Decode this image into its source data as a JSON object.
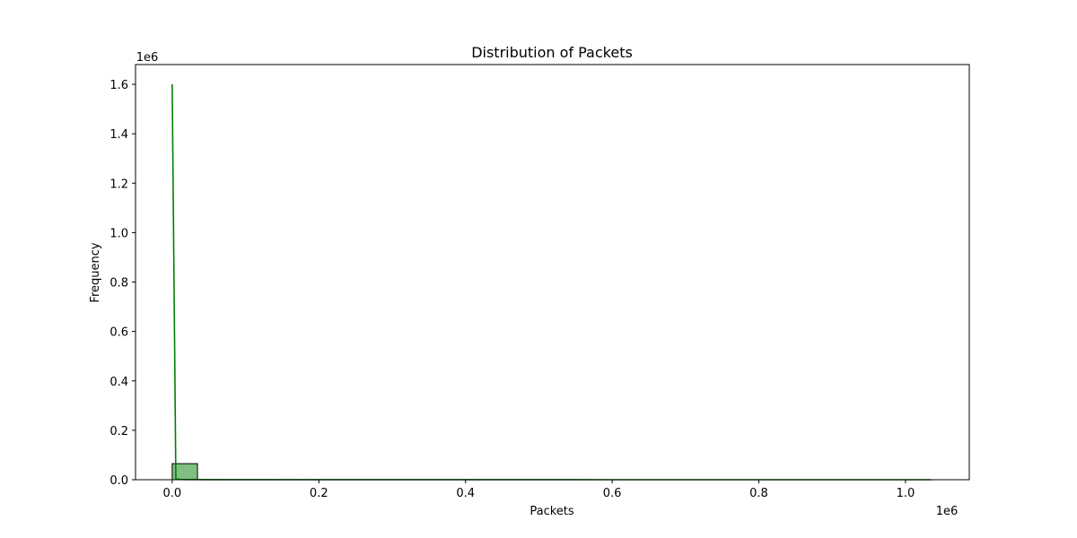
{
  "chart_data": {
    "type": "bar",
    "title": "Distribution of Packets",
    "xlabel": "Packets",
    "ylabel": "Frequency",
    "x_offset_text": "1e6",
    "y_offset_text": "1e6",
    "xlim": [
      -50000,
      1087000
    ],
    "ylim": [
      0,
      1680000
    ],
    "x_ticks": [
      0,
      200000,
      400000,
      600000,
      800000,
      1000000
    ],
    "x_tick_labels": [
      "0.0",
      "0.2",
      "0.4",
      "0.6",
      "0.8",
      "1.0"
    ],
    "y_ticks": [
      0,
      200000,
      400000,
      600000,
      800000,
      1000000,
      1200000,
      1400000,
      1600000
    ],
    "y_tick_labels": [
      "0.0",
      "0.2",
      "0.4",
      "0.6",
      "0.8",
      "1.0",
      "1.2",
      "1.4",
      "1.6"
    ],
    "bins": [
      {
        "x0": 0,
        "x1": 34500,
        "count": 65000
      },
      {
        "x0": 34500,
        "x1": 69000,
        "count": 300
      },
      {
        "x0": 69000,
        "x1": 103500,
        "count": 100
      },
      {
        "x0": 103500,
        "x1": 138000,
        "count": 50
      },
      {
        "x0": 138000,
        "x1": 172500,
        "count": 20
      },
      {
        "x0": 172500,
        "x1": 207000,
        "count": 10
      },
      {
        "x0": 207000,
        "x1": 241500,
        "count": 5
      },
      {
        "x0": 241500,
        "x1": 276000,
        "count": 2
      },
      {
        "x0": 276000,
        "x1": 310500,
        "count": 1
      },
      {
        "x0": 310500,
        "x1": 345000,
        "count": 1
      },
      {
        "x0": 345000,
        "x1": 379500,
        "count": 1
      },
      {
        "x0": 379500,
        "x1": 414000,
        "count": 1
      },
      {
        "x0": 414000,
        "x1": 448500,
        "count": 1
      },
      {
        "x0": 448500,
        "x1": 483000,
        "count": 1
      },
      {
        "x0": 483000,
        "x1": 517500,
        "count": 1
      },
      {
        "x0": 517500,
        "x1": 552000,
        "count": 1
      },
      {
        "x0": 552000,
        "x1": 586500,
        "count": 1
      },
      {
        "x0": 586500,
        "x1": 621000,
        "count": 1
      },
      {
        "x0": 621000,
        "x1": 655500,
        "count": 1
      },
      {
        "x0": 655500,
        "x1": 690000,
        "count": 1
      },
      {
        "x0": 690000,
        "x1": 724500,
        "count": 1
      },
      {
        "x0": 724500,
        "x1": 759000,
        "count": 1
      },
      {
        "x0": 759000,
        "x1": 793500,
        "count": 1
      },
      {
        "x0": 793500,
        "x1": 828000,
        "count": 1
      },
      {
        "x0": 828000,
        "x1": 862500,
        "count": 1
      },
      {
        "x0": 862500,
        "x1": 897000,
        "count": 1
      },
      {
        "x0": 897000,
        "x1": 931500,
        "count": 1
      },
      {
        "x0": 931500,
        "x1": 966000,
        "count": 1
      },
      {
        "x0": 966000,
        "x1": 1000500,
        "count": 1
      },
      {
        "x0": 1000500,
        "x1": 1035000,
        "count": 1
      }
    ],
    "kde": {
      "x": [
        0,
        5000,
        7000,
        10000,
        20000,
        50000,
        100000,
        300000,
        600000,
        1035000
      ],
      "y": [
        1600000,
        5000,
        2000,
        1000,
        500,
        300,
        200,
        100,
        50,
        20
      ]
    },
    "colors": {
      "bar_fill": "#7fbf7f",
      "bar_edge": "#000000",
      "kde_line": "#008000"
    },
    "grid": false
  }
}
